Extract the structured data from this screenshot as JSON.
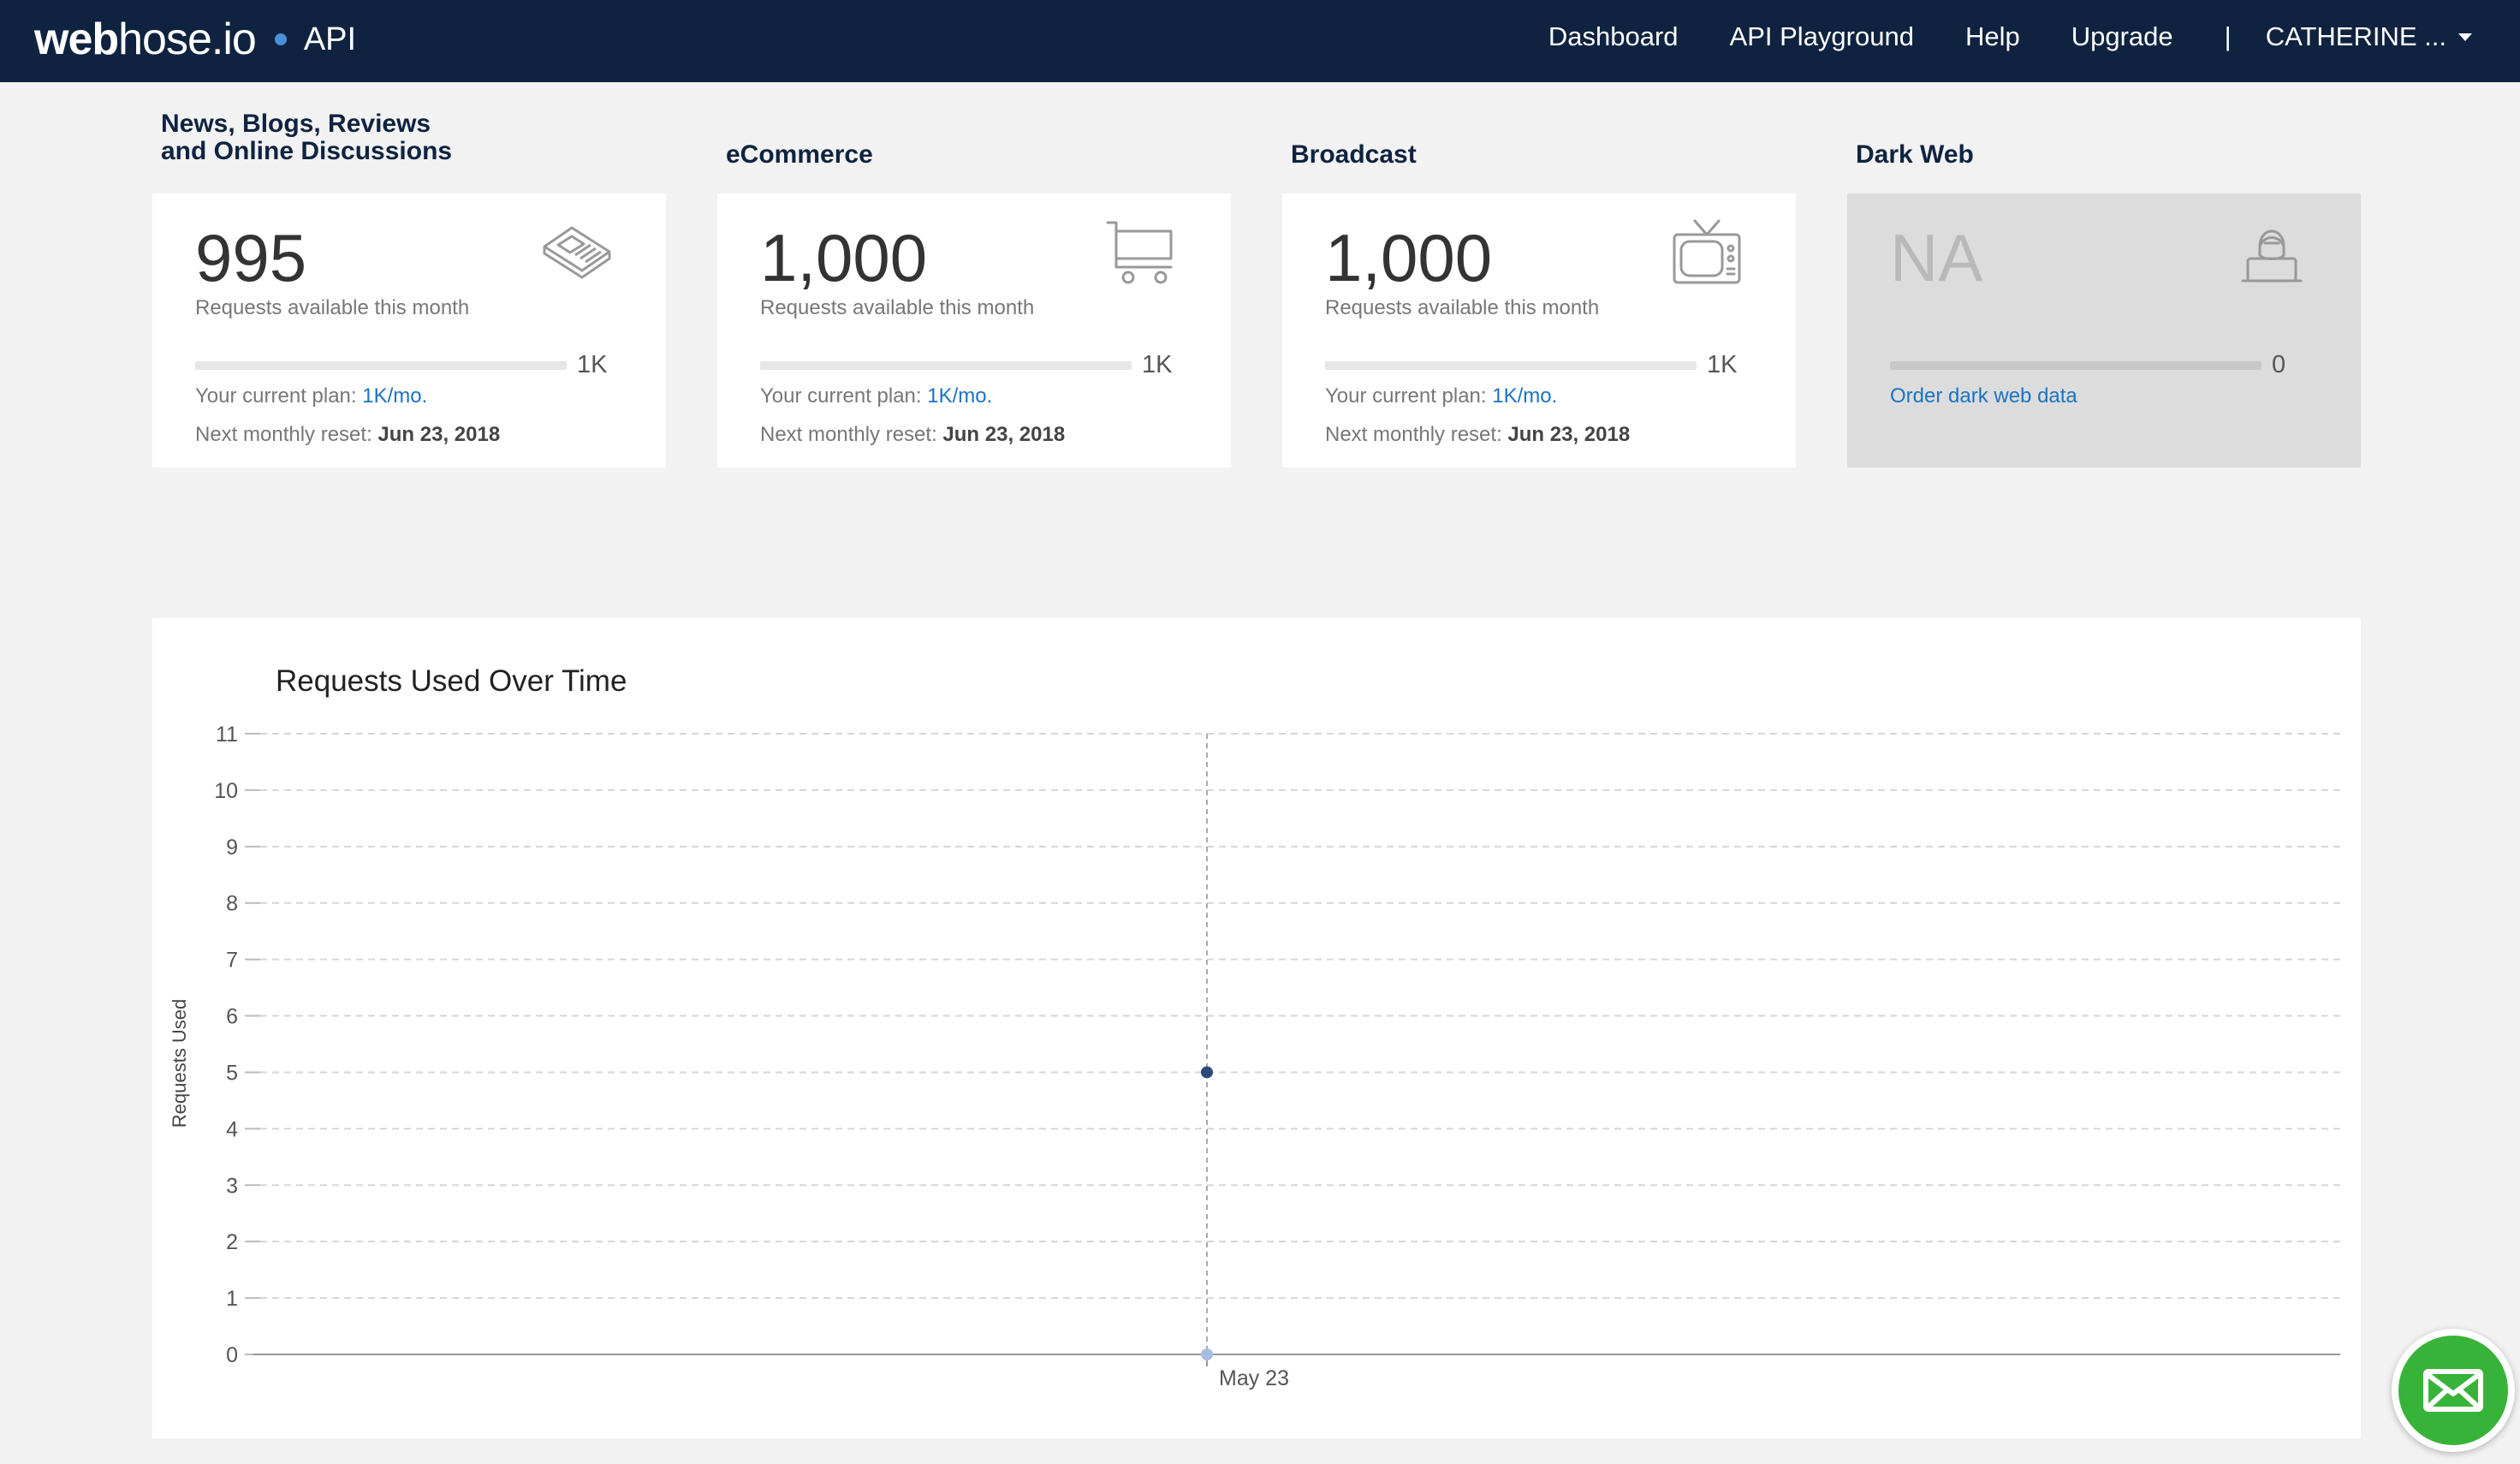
{
  "brand": {
    "name_bold": "web",
    "name_rest": "hose.io",
    "product": "API",
    "accent": "#4a90d9"
  },
  "nav": {
    "items": [
      "Dashboard",
      "API Playground",
      "Help",
      "Upgrade"
    ],
    "separator": "|",
    "user": "CATHERINE ..."
  },
  "cards": [
    {
      "title": "News, Blogs, Reviews\nand Online Discussions",
      "value": "995",
      "sub": "Requests available this month",
      "bar_label": "1K",
      "bar_fill": 0.005,
      "plan_label": "Your current plan:",
      "plan_value": "1K/mo.",
      "reset_label": "Next monthly reset:",
      "reset_value": "Jun 23, 2018",
      "icon": "newspaper-icon"
    },
    {
      "title": "eCommerce",
      "value": "1,000",
      "sub": "Requests available this month",
      "bar_label": "1K",
      "bar_fill": 0,
      "plan_label": "Your current plan:",
      "plan_value": "1K/mo.",
      "reset_label": "Next monthly reset:",
      "reset_value": "Jun 23, 2018",
      "icon": "shopping-cart-icon"
    },
    {
      "title": "Broadcast",
      "value": "1,000",
      "sub": "Requests available this month",
      "bar_label": "1K",
      "bar_fill": 0,
      "plan_label": "Your current plan:",
      "plan_value": "1K/mo.",
      "reset_label": "Next monthly reset:",
      "reset_value": "Jun 23, 2018",
      "icon": "tv-icon"
    },
    {
      "title": "Dark Web",
      "value": "NA",
      "bar_label": "0",
      "bar_fill": 0,
      "link": "Order dark web data",
      "icon": "hacker-icon"
    }
  ],
  "chart_data": {
    "type": "line",
    "title": "Requests Used Over Time",
    "ylabel": "Requests Used",
    "xlabel": "",
    "yticks": [
      0,
      1,
      2,
      3,
      4,
      5,
      6,
      7,
      8,
      9,
      10,
      11
    ],
    "ylim": [
      0,
      11
    ],
    "grid": true,
    "x": [
      "May 23"
    ],
    "series": [
      {
        "values": [
          5
        ]
      }
    ],
    "colors": {
      "point": "#2b4a7a",
      "baseline_point": "#a9bde3",
      "grid": "#d6d6d6"
    }
  },
  "chat": {
    "icon": "mail-icon",
    "color": "#38b339"
  }
}
